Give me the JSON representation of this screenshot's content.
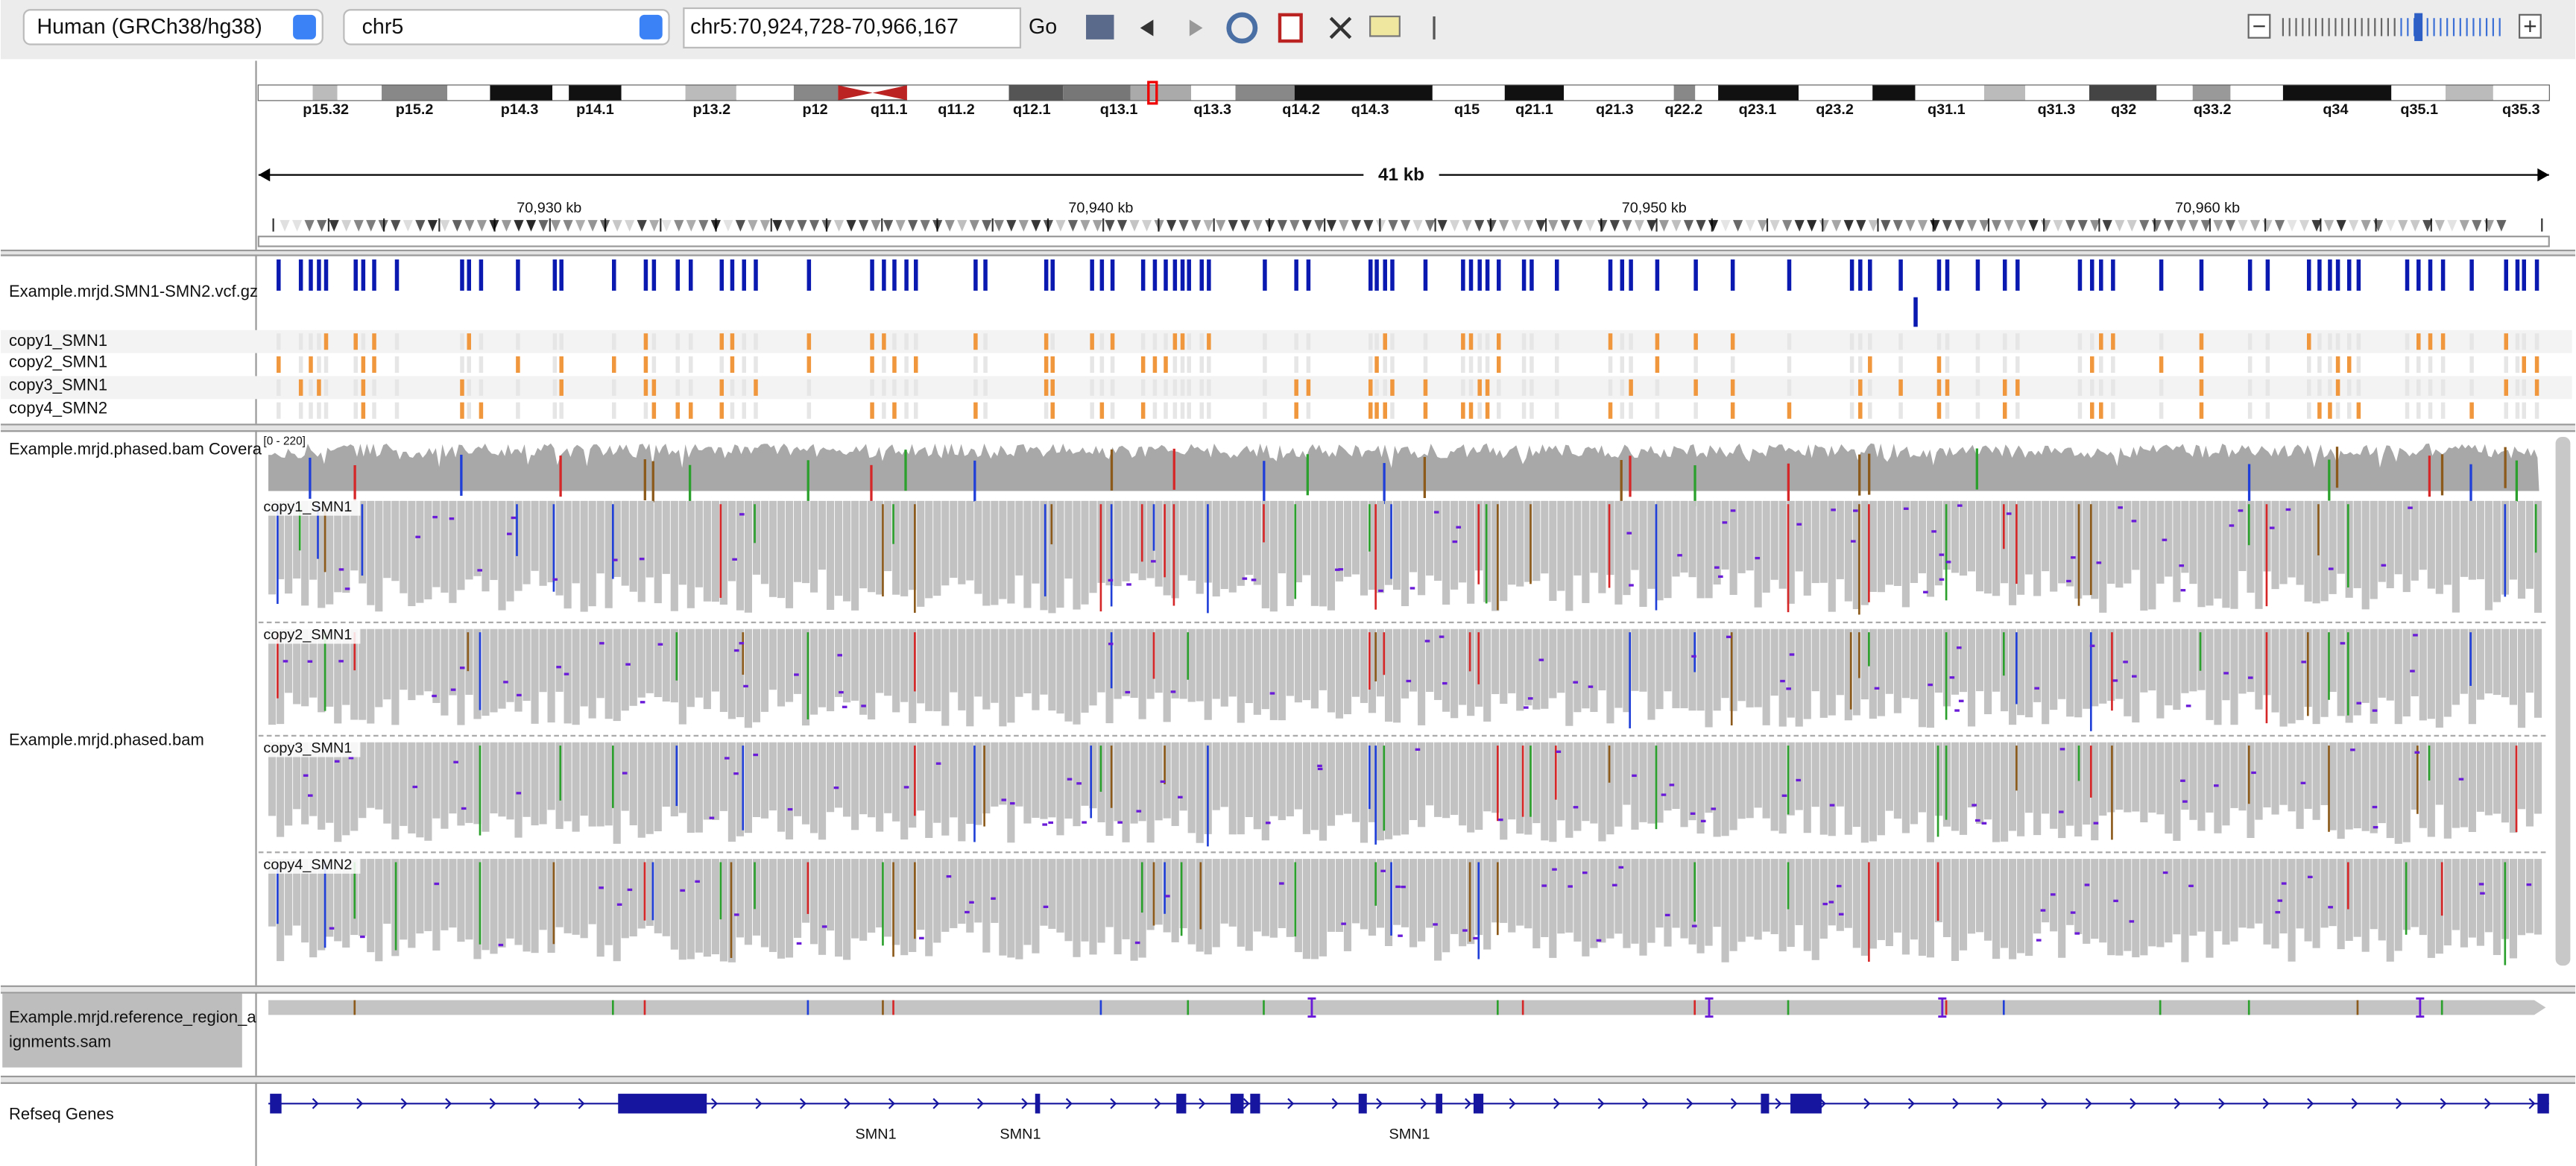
{
  "toolbar": {
    "genome": "Human (GRCh38/hg38)",
    "chromosome": "chr5",
    "locus": "chr5:70,924,728-70,966,167",
    "go": "Go"
  },
  "ideogram": {
    "bands": [
      "p15.32",
      "p15.2",
      "p14.3",
      "p14.1",
      "p13.2",
      "p12",
      "q11.1",
      "q11.2",
      "q12.1",
      "q13.1",
      "q13.3",
      "q14.2",
      "q14.3",
      "q15",
      "q21.1",
      "q21.3",
      "q22.2",
      "q23.1",
      "q23.2",
      "q31.1",
      "q31.3",
      "q32",
      "q33.2",
      "q34",
      "q35.1",
      "q35.3"
    ]
  },
  "ruler": {
    "span": "41 kb",
    "ticks": [
      "70,930 kb",
      "70,940 kb",
      "70,950 kb",
      "70,960 kb"
    ]
  },
  "tracks": {
    "vcf": {
      "name": "Example.mrjd.SMN1-SMN2.vcf.gz",
      "samples": [
        "copy1_SMN1",
        "copy2_SMN1",
        "copy3_SMN1",
        "copy4_SMN2"
      ]
    },
    "coverage": {
      "name": "Example.mrjd.phased.bam Covera",
      "range": "[0 - 220]"
    },
    "alignments": {
      "name": "Example.mrjd.phased.bam",
      "groups": [
        "copy1_SMN1",
        "copy2_SMN1",
        "copy3_SMN1",
        "copy4_SMN2"
      ]
    },
    "reference": {
      "name": [
        "Example.mrjd.reference_region_a",
        "ignments.sam"
      ]
    },
    "genes": {
      "name": "Refseq Genes",
      "labels": [
        "SMN1",
        "SMN1",
        "SMN1"
      ]
    }
  }
}
